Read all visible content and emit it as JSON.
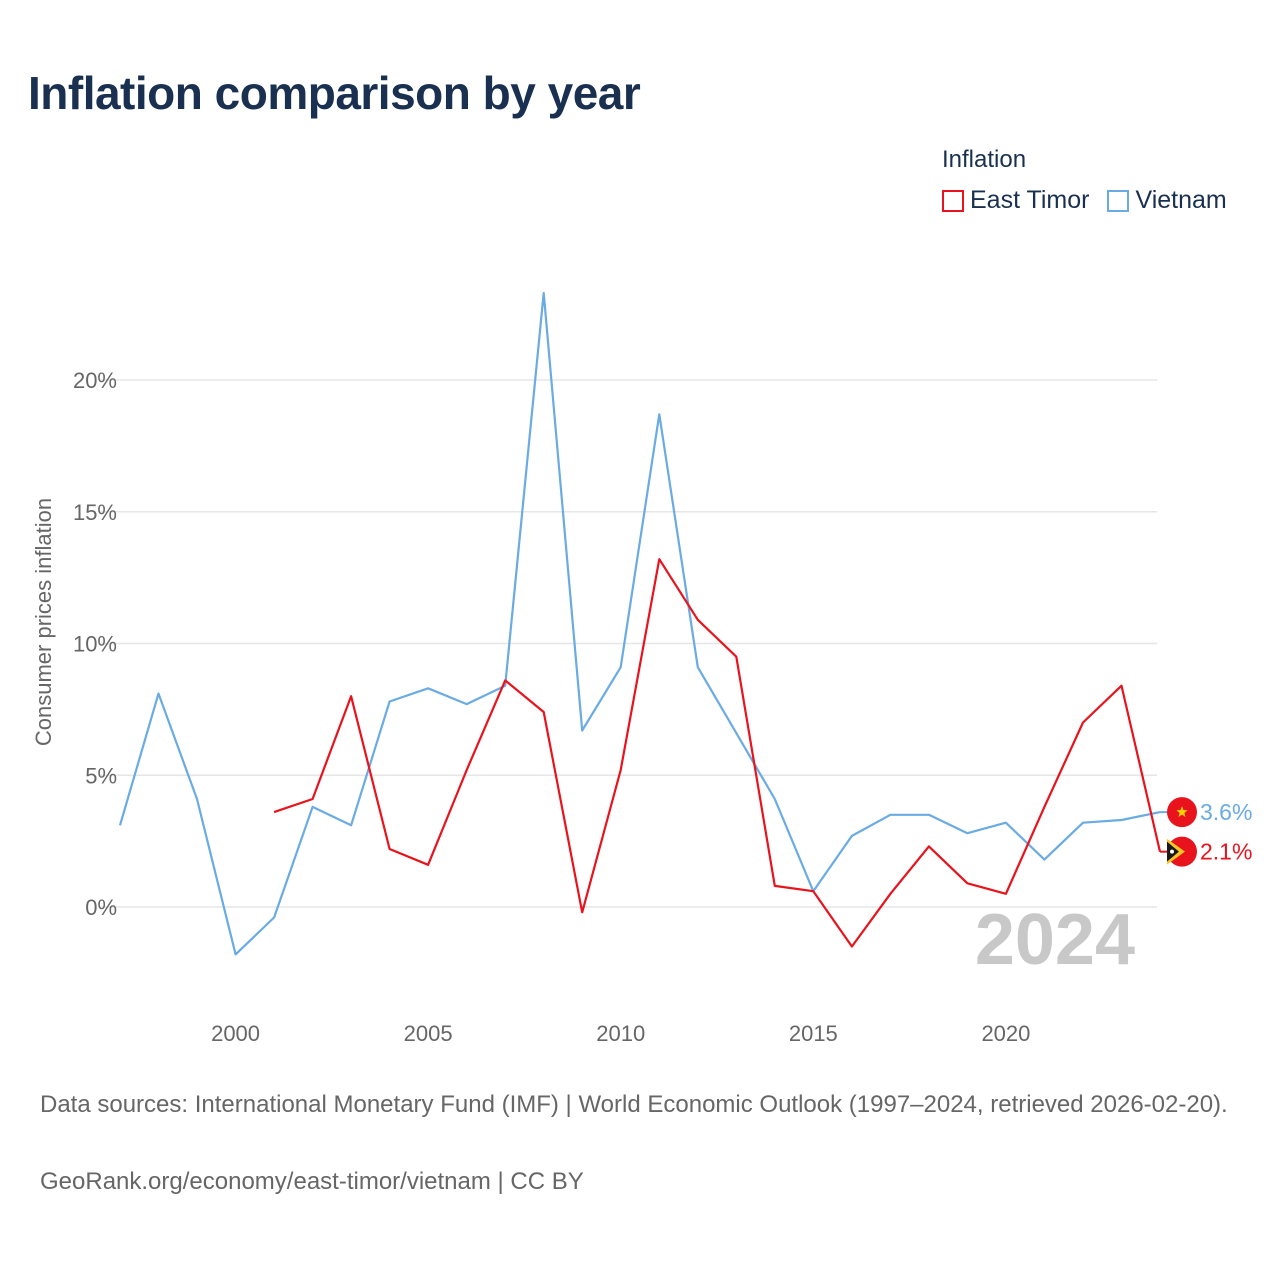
{
  "title": "Inflation comparison by year",
  "legend": {
    "title": "Inflation",
    "items": [
      {
        "label": "East Timor",
        "color": "#e8131c"
      },
      {
        "label": "Vietnam",
        "color": "#6aabe4"
      }
    ]
  },
  "footer": {
    "source": "Data sources: International Monetary Fund (IMF) | World Economic Outlook (1997–2024, retrieved 2026-02-20).",
    "credit": "GeoRank.org/economy/east-timor/vietnam | CC BY"
  },
  "chart_data": {
    "type": "line",
    "title": "Inflation comparison by year",
    "ylabel": "Consumer prices inflation",
    "xlabel": "",
    "xlim": [
      1997,
      2024
    ],
    "ylim": [
      -3.5,
      25
    ],
    "xticks": [
      2000,
      2005,
      2010,
      2015,
      2020
    ],
    "yticks": [
      0,
      5,
      10,
      15,
      20
    ],
    "ytick_labels": [
      "0%",
      "5%",
      "10%",
      "15%",
      "20%"
    ],
    "grid": true,
    "legend_position": "top-right",
    "watermark_year": "2024",
    "series": [
      {
        "name": "East Timor",
        "color": "#e8131c",
        "end_label": "2.1%",
        "flag": "east-timor-flag-icon",
        "x": [
          2001,
          2002,
          2003,
          2004,
          2005,
          2006,
          2007,
          2008,
          2009,
          2010,
          2011,
          2012,
          2013,
          2014,
          2015,
          2016,
          2017,
          2018,
          2019,
          2020,
          2021,
          2022,
          2023,
          2024
        ],
        "values": [
          3.6,
          4.1,
          8.0,
          2.2,
          1.6,
          5.2,
          8.6,
          7.4,
          -0.2,
          5.2,
          13.2,
          10.9,
          9.5,
          0.8,
          0.6,
          -1.5,
          0.5,
          2.3,
          0.9,
          0.5,
          3.8,
          7.0,
          8.4,
          2.1
        ]
      },
      {
        "name": "Vietnam",
        "color": "#6aabe4",
        "end_label": "3.6%",
        "flag": "vietnam-flag-icon",
        "x": [
          1997,
          1998,
          1999,
          2000,
          2001,
          2002,
          2003,
          2004,
          2005,
          2006,
          2007,
          2008,
          2009,
          2010,
          2011,
          2012,
          2013,
          2014,
          2015,
          2016,
          2017,
          2018,
          2019,
          2020,
          2021,
          2022,
          2023,
          2024
        ],
        "values": [
          3.1,
          8.1,
          4.1,
          -1.8,
          -0.4,
          3.8,
          3.1,
          7.8,
          8.3,
          7.7,
          8.4,
          23.3,
          6.7,
          9.1,
          18.7,
          9.1,
          6.6,
          4.1,
          0.6,
          2.7,
          3.5,
          3.5,
          2.8,
          3.2,
          1.8,
          3.2,
          3.3,
          3.6
        ]
      }
    ]
  }
}
